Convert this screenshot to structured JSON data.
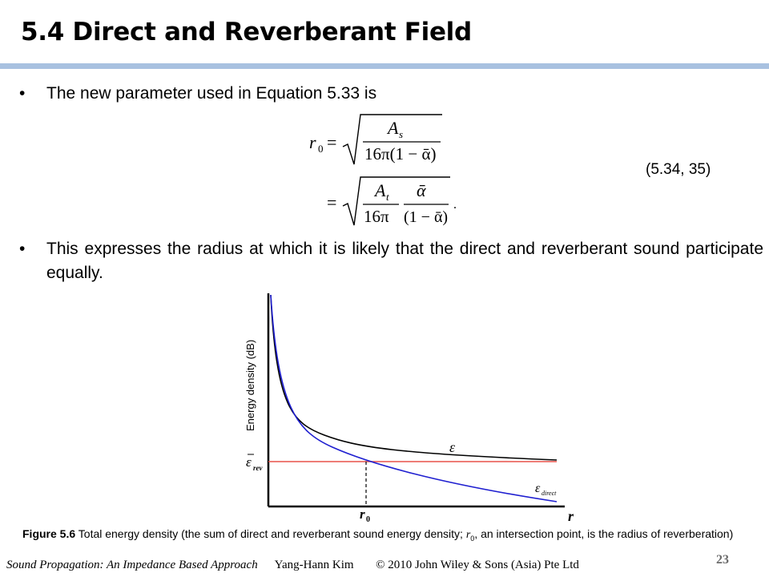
{
  "slide": {
    "title": "5.4 Direct and Reverberant Field",
    "bullet1": "The new parameter used in Equation 5.33 is",
    "bullet2": "This expresses the radius at which it is likely that the direct and reverberant sound participate equally.",
    "equation_number": "(5.34, 35)",
    "bullet_symbol": "•"
  },
  "equation": {
    "lhs": "r",
    "lhs_sub": "0",
    "eq1_num": "A",
    "eq1_num_sub": "s",
    "eq1_den": "16π(1 − ᾱ)",
    "eq2_num_left": "A",
    "eq2_num_left_sub": "t",
    "eq2_den_left": "16π",
    "eq2_num_right": "ᾱ",
    "eq2_den_right": "(1 − ᾱ)",
    "equals": "=",
    "period": "."
  },
  "figure": {
    "ylabel": "Energy density (dB)",
    "xlabel": "r",
    "r0_label": "r",
    "r0_sub": "0",
    "eps_label": "ε",
    "eps_rev_label": "ε",
    "eps_rev_sub": "rev",
    "eps_direct_label": "ε",
    "eps_direct_sub": "direct",
    "colors": {
      "total": "#000000",
      "direct": "#1f1fd0",
      "reverberant": "#e8524a"
    }
  },
  "caption": {
    "bold": "Figure 5.6",
    "text_a": "  Total energy density (the sum of direct and reverberant sound energy density; ",
    "r0": "r",
    "r0_sub": "0",
    "text_b": ", an intersection point, is the radius of reverberation)"
  },
  "footer": {
    "book": "Sound Propagation: An Impedance Based Approach",
    "author": "Yang-Hann Kim",
    "copyright": "© 2010 John Wiley & Sons (Asia) Pte Ltd",
    "page": "23"
  }
}
